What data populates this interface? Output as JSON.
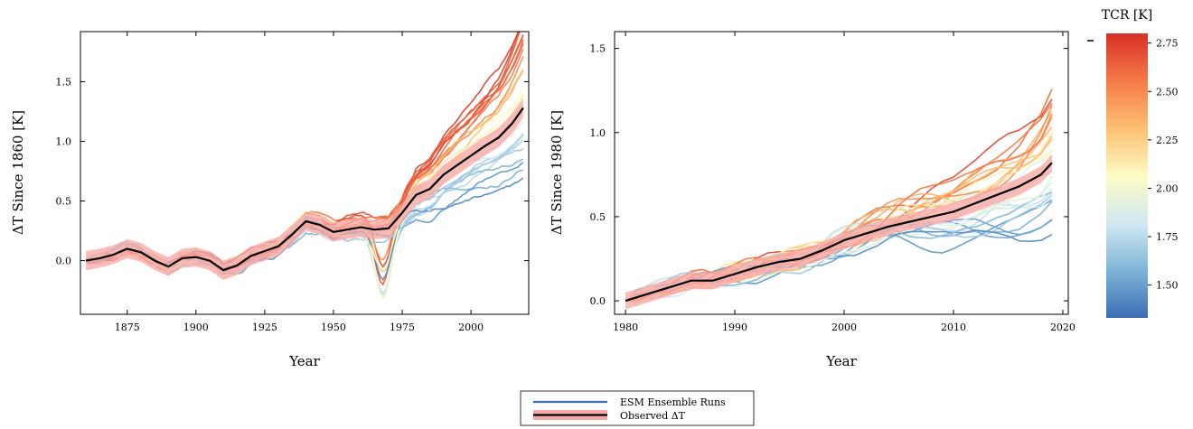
{
  "chart_data": [
    {
      "type": "line",
      "id": "left",
      "xlabel": "Year",
      "ylabel": "ΔT Since 1860 [K]",
      "xlim": [
        1858,
        2021
      ],
      "ylim": [
        -0.45,
        1.92
      ],
      "xticks": [
        1875,
        1900,
        1925,
        1950,
        1975,
        2000
      ],
      "xtick_labels": [
        "1875",
        "1900",
        "1925",
        "1950",
        "1975",
        "2000"
      ],
      "yticks": [
        0.0,
        0.5,
        1.0,
        1.5
      ],
      "ytick_labels": [
        "0.0",
        "0.5",
        "1.0",
        "1.5"
      ],
      "ensemble_count": 30,
      "observed": {
        "x": [
          1860,
          1865,
          1870,
          1875,
          1880,
          1885,
          1890,
          1895,
          1900,
          1905,
          1910,
          1915,
          1920,
          1925,
          1930,
          1935,
          1940,
          1945,
          1950,
          1955,
          1960,
          1965,
          1970,
          1975,
          1980,
          1985,
          1990,
          1995,
          2000,
          2005,
          2010,
          2015,
          2019
        ],
        "y": [
          0.0,
          0.02,
          0.05,
          0.1,
          0.07,
          0.0,
          -0.05,
          0.02,
          0.03,
          0.0,
          -0.08,
          -0.04,
          0.04,
          0.08,
          0.12,
          0.22,
          0.33,
          0.3,
          0.24,
          0.26,
          0.28,
          0.26,
          0.27,
          0.4,
          0.55,
          0.6,
          0.72,
          0.8,
          0.88,
          0.96,
          1.03,
          1.15,
          1.28
        ]
      }
    },
    {
      "type": "line",
      "id": "right",
      "xlabel": "Year",
      "ylabel": "ΔT Since 1980 [K]",
      "xlim": [
        1979,
        2020.5
      ],
      "ylim": [
        -0.08,
        1.6
      ],
      "xticks": [
        1980,
        1990,
        2000,
        2010,
        2020
      ],
      "xtick_labels": [
        "1980",
        "1990",
        "2000",
        "2010",
        "2020"
      ],
      "yticks": [
        0.0,
        0.5,
        1.0,
        1.5
      ],
      "ytick_labels": [
        "0.0",
        "0.5",
        "1.0",
        "1.5"
      ],
      "ensemble_count": 30,
      "observed": {
        "x": [
          1980,
          1982,
          1984,
          1986,
          1988,
          1990,
          1992,
          1994,
          1996,
          1998,
          2000,
          2002,
          2004,
          2006,
          2008,
          2010,
          2012,
          2014,
          2016,
          2018,
          2019
        ],
        "y": [
          0.0,
          0.04,
          0.08,
          0.12,
          0.12,
          0.16,
          0.2,
          0.23,
          0.25,
          0.3,
          0.36,
          0.4,
          0.44,
          0.47,
          0.5,
          0.53,
          0.58,
          0.63,
          0.68,
          0.75,
          0.82
        ]
      }
    }
  ],
  "colorbar": {
    "title": "TCR [K]",
    "range": [
      1.33,
      2.8
    ],
    "ticks": [
      1.5,
      1.75,
      2.0,
      2.25,
      2.5,
      2.75
    ],
    "tick_labels": [
      "1.50",
      "1.75",
      "2.00",
      "2.25",
      "2.50",
      "2.75"
    ],
    "colors": [
      "#3a6eb4",
      "#7fb4d7",
      "#d2e9f1",
      "#fefbc4",
      "#fdbf71",
      "#f67a48",
      "#d73027"
    ]
  },
  "legend": {
    "items": [
      {
        "label": "ESM Ensemble Runs",
        "color": "#3e6fb0"
      },
      {
        "label": "Observed ΔT",
        "color": "#000000",
        "band_color": "#f8a7a7"
      }
    ]
  }
}
